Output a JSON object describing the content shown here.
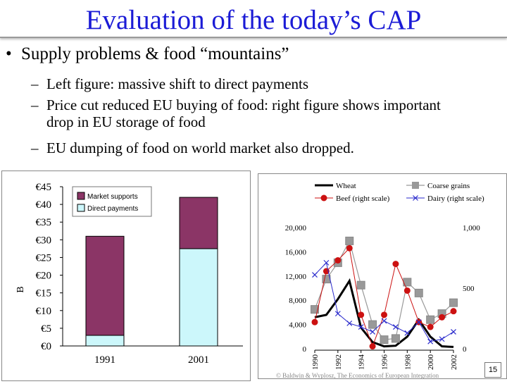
{
  "slide": {
    "title": "Evaluation of the today’s CAP",
    "bullet": "Supply problems & food “mountains”",
    "subbullets": [
      [
        "Left figure: massive shift to direct payments"
      ],
      [
        "Price cut reduced EU buying of food: right figure shows important",
        "drop in EU storage of food"
      ],
      [
        "EU dumping of food on world market also dropped."
      ]
    ],
    "bullet_marker": "•",
    "dash_marker": "–",
    "footer": "© Baldwin & Wyplosz, The Economics of European Integration",
    "page_number": "15"
  },
  "colors": {
    "title": "#1b1bd6",
    "market_supports": "#8b3566",
    "direct_payments": "#ccf7fb",
    "wheat": "#000000",
    "coarse_grains": "#999999",
    "beef": "#cc1111",
    "dairy": "#2a2acc"
  },
  "chart_data": [
    {
      "type": "bar",
      "stacked": true,
      "categories": [
        "1991",
        "2001"
      ],
      "series": [
        {
          "name": "Market supports",
          "values": [
            28,
            14.5
          ]
        },
        {
          "name": "Direct payments",
          "values": [
            3,
            27.5
          ]
        }
      ],
      "ylim": [
        0,
        45
      ],
      "yticks": [
        "€0",
        "€5",
        "€10",
        "€15",
        "€20",
        "€25",
        "€30",
        "€35",
        "€40",
        "€45"
      ],
      "ylabel": "B",
      "legend": "top-left"
    },
    {
      "type": "line",
      "x": [
        "1990",
        "1991",
        "1992",
        "1993",
        "1994",
        "1995",
        "1996",
        "1997",
        "1998",
        "1999",
        "2000",
        "2001",
        "2002"
      ],
      "xticks": [
        "1990",
        "1992",
        "1994",
        "1996",
        "1998",
        "2000",
        "2002"
      ],
      "series": [
        {
          "name": "Wheat",
          "axis": "left",
          "values": [
            5200,
            5600,
            8200,
            11200,
            3500,
            1100,
            400,
            500,
            2000,
            4800,
            2000,
            400,
            300
          ]
        },
        {
          "name": "Coarse grains",
          "axis": "left",
          "values": [
            6500,
            11500,
            14200,
            17800,
            10500,
            4000,
            1500,
            1700,
            11000,
            9200,
            4800,
            5800,
            7600
          ]
        },
        {
          "name": "Beef  (right scale)",
          "axis": "right",
          "values": [
            220,
            640,
            730,
            830,
            280,
            20,
            280,
            700,
            480,
            220,
            180,
            260,
            310
          ]
        },
        {
          "name": "Dairy   (right scale)",
          "axis": "right",
          "values": [
            610,
            710,
            290,
            210,
            180,
            140,
            230,
            180,
            130,
            220,
            60,
            80,
            140
          ]
        }
      ],
      "left_ylim": [
        0,
        20000
      ],
      "left_yticks": [
        "0",
        "4,000",
        "8,000",
        "12,000",
        "16,000",
        "20,000"
      ],
      "right_ylim": [
        0,
        1000
      ],
      "right_yticks": [
        "0",
        "500",
        "1,000"
      ],
      "legend": "top"
    }
  ]
}
